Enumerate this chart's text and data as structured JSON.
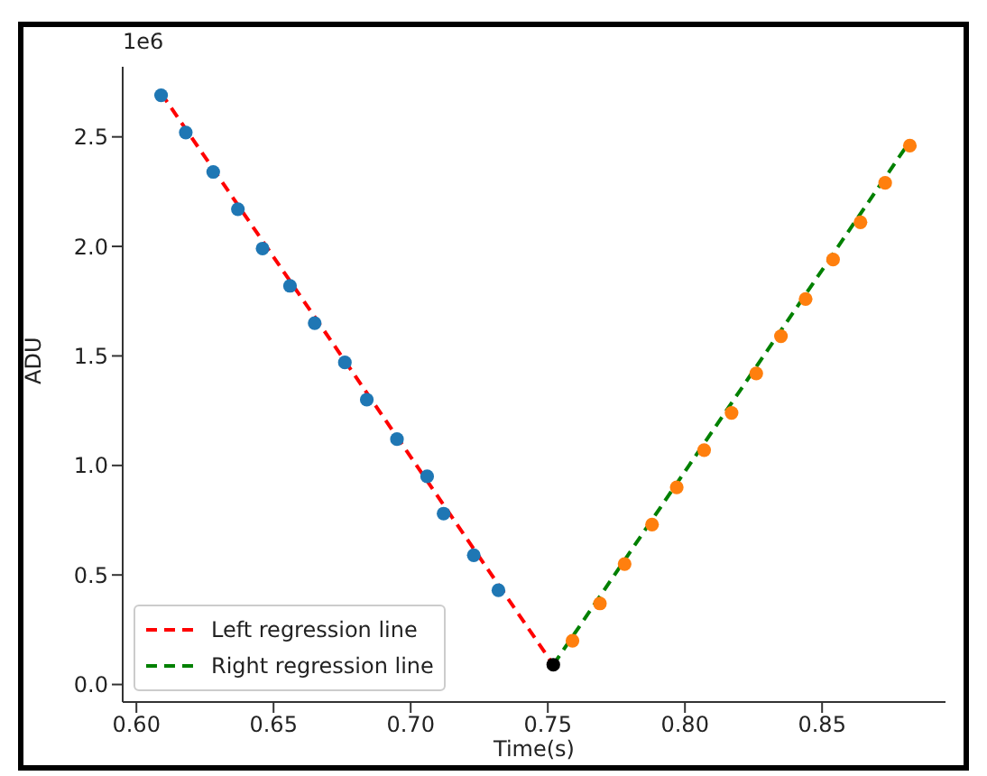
{
  "chart_data": {
    "type": "scatter",
    "xlabel": "Time(s)",
    "ylabel": "ADU",
    "annotations": [
      "1e6"
    ],
    "xlim": [
      0.595,
      0.895
    ],
    "ylim": [
      -0.08,
      2.82
    ],
    "xticks": [
      {
        "value": 0.6,
        "label": "0.60"
      },
      {
        "value": 0.65,
        "label": "0.65"
      },
      {
        "value": 0.7,
        "label": "0.70"
      },
      {
        "value": 0.75,
        "label": "0.75"
      },
      {
        "value": 0.8,
        "label": "0.80"
      },
      {
        "value": 0.85,
        "label": "0.85"
      }
    ],
    "yticks": [
      {
        "value": 0,
        "label": "0.0"
      },
      {
        "value": 0.5,
        "label": "0.5"
      },
      {
        "value": 1,
        "label": "1.0"
      },
      {
        "value": 1.5,
        "label": "1.5"
      },
      {
        "value": 2,
        "label": "2.0"
      },
      {
        "value": 2.5,
        "label": "2.5"
      }
    ],
    "grid": false,
    "legend": "bottom left",
    "series": [
      {
        "marker": "circle",
        "color": "#1f77b4",
        "x": [
          0.609,
          0.618,
          0.628,
          0.637,
          0.646,
          0.656,
          0.665,
          0.676,
          0.684,
          0.695,
          0.706,
          0.712,
          0.723,
          0.732
        ],
        "values": [
          2.69,
          2.52,
          2.34,
          2.17,
          1.99,
          1.82,
          1.65,
          1.47,
          1.3,
          1.12,
          0.95,
          0.78,
          0.59,
          0.43
        ]
      },
      {
        "marker": "circle",
        "color": "#ff7f0e",
        "x": [
          0.759,
          0.769,
          0.778,
          0.788,
          0.797,
          0.807,
          0.817,
          0.826,
          0.835,
          0.844,
          0.854,
          0.864,
          0.873,
          0.882
        ],
        "values": [
          0.2,
          0.37,
          0.55,
          0.73,
          0.9,
          1.07,
          1.24,
          1.42,
          1.59,
          1.76,
          1.94,
          2.11,
          2.29,
          2.46
        ]
      },
      {
        "marker": "circle",
        "color": "#000000",
        "x": [
          0.752
        ],
        "values": [
          0.09
        ]
      },
      {
        "type": "line",
        "name": "Left regression line",
        "marker": "none",
        "line_style": "dashed",
        "color": "#ff0000",
        "x": [
          0.609,
          0.752
        ],
        "values": [
          2.7,
          0.09
        ]
      },
      {
        "type": "line",
        "name": "Right regression line",
        "marker": "none",
        "line_style": "dashed",
        "color": "#008000",
        "x": [
          0.752,
          0.882
        ],
        "values": [
          0.09,
          2.48
        ]
      }
    ]
  }
}
